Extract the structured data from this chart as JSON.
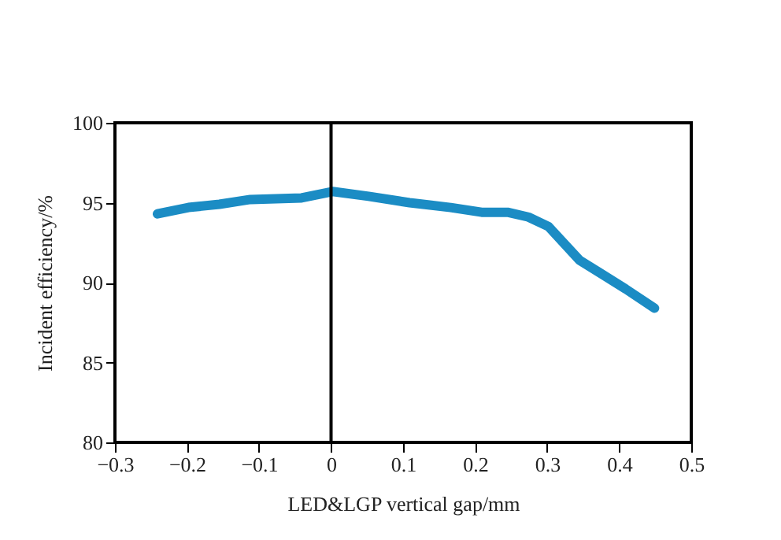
{
  "chart_data": {
    "type": "line",
    "xlabel": "LED&LGP  vertical  gap/mm",
    "ylabel": "Incident efficiency/%",
    "x": [
      -0.241,
      -0.198,
      -0.155,
      -0.112,
      -0.041,
      0.002,
      0.052,
      0.109,
      0.166,
      0.209,
      0.245,
      0.274,
      0.302,
      0.345,
      0.409,
      0.449
    ],
    "series": [
      {
        "color": "#1b8cc4",
        "values": [
          94.3,
          94.7,
          94.9,
          95.2,
          95.3,
          95.7,
          95.4,
          95.0,
          94.7,
          94.4,
          94.4,
          94.1,
          93.5,
          91.4,
          89.6,
          88.4
        ]
      }
    ],
    "xlim": [
      -0.3,
      0.5
    ],
    "xticks": [
      {
        "value": -0.3,
        "label": "−0.3"
      },
      {
        "value": -0.2,
        "label": "−0.2"
      },
      {
        "value": -0.1,
        "label": "−0.1"
      },
      0,
      0.1,
      0.2,
      0.3,
      0.4,
      0.5
    ],
    "ylim": [
      80,
      100
    ],
    "yticks": [
      80,
      85,
      90,
      95,
      100
    ],
    "ref_lines": [
      {
        "axis": "x",
        "value": 0,
        "color": "#000000"
      }
    ],
    "grid": false,
    "marker": "none",
    "line_style": "solid"
  }
}
